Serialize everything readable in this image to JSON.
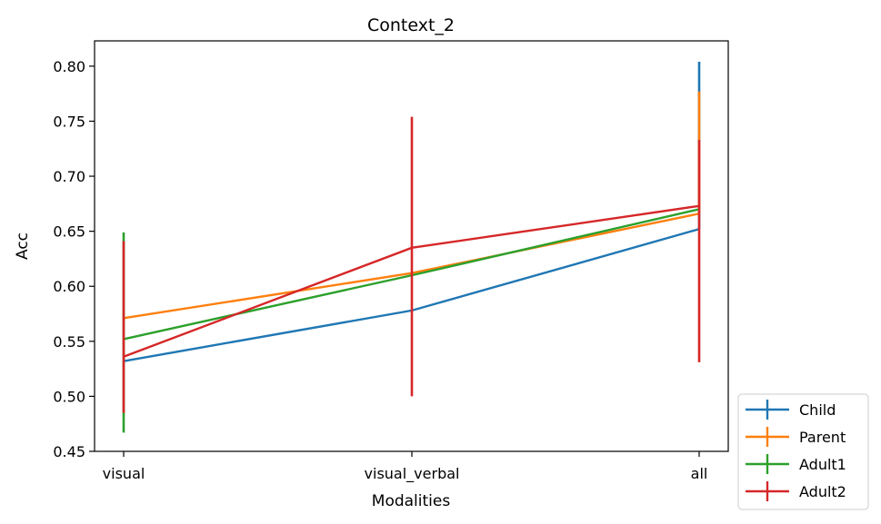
{
  "chart_data": {
    "type": "line",
    "title": "Context_2",
    "xlabel": "Modalities",
    "ylabel": "Acc",
    "categories": [
      "visual",
      "visual_verbal",
      "all"
    ],
    "ylim": [
      0.45,
      0.823
    ],
    "yticks": [
      "0.45",
      "0.50",
      "0.55",
      "0.60",
      "0.65",
      "0.70",
      "0.75",
      "0.80"
    ],
    "grid": false,
    "legend_position": "outside-bottom-right",
    "series": [
      {
        "name": "Child",
        "color": "#1f77b4",
        "values": [
          0.532,
          0.578,
          0.652
        ],
        "err_low": [
          null,
          null,
          null
        ],
        "err_high": [
          null,
          null,
          0.804
        ]
      },
      {
        "name": "Parent",
        "color": "#ff7f0e",
        "values": [
          0.571,
          0.612,
          0.666
        ],
        "err_low": [
          null,
          null,
          null
        ],
        "err_high": [
          null,
          null,
          0.777
        ]
      },
      {
        "name": "Adult1",
        "color": "#2ca02c",
        "values": [
          0.552,
          0.61,
          0.67
        ],
        "err_low": [
          0.467,
          null,
          null
        ],
        "err_high": [
          0.649,
          null,
          null
        ]
      },
      {
        "name": "Adult2",
        "color": "#d62728",
        "values": [
          0.536,
          0.635,
          0.673
        ],
        "err_low": [
          0.485,
          0.5,
          0.531
        ],
        "err_high": [
          0.641,
          0.754,
          0.733
        ]
      }
    ]
  }
}
